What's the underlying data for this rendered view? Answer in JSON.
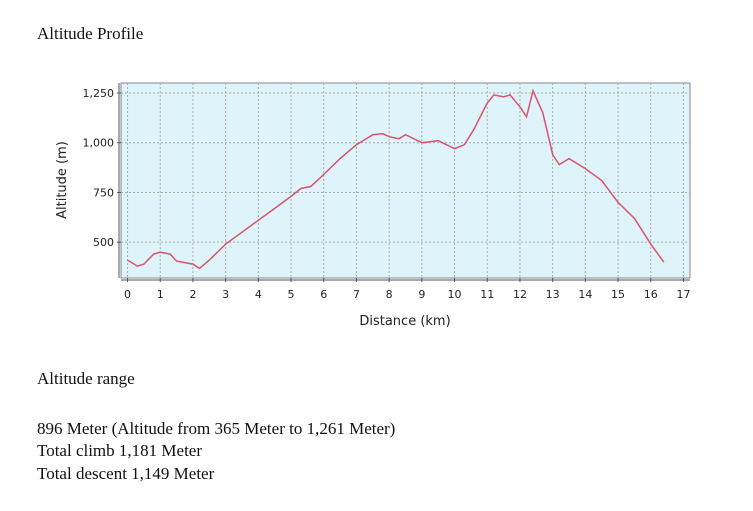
{
  "title": "Altitude Profile",
  "chart_data": {
    "type": "line",
    "xlabel": "Distance (km)",
    "ylabel": "Altitude (m)",
    "x": [
      0,
      0.3,
      0.5,
      0.8,
      1.0,
      1.3,
      1.5,
      2.0,
      2.2,
      2.5,
      3,
      3.5,
      4,
      4.5,
      5,
      5.3,
      5.6,
      6,
      6.5,
      7,
      7.5,
      7.8,
      8,
      8.3,
      8.5,
      9,
      9.5,
      10,
      10.3,
      10.6,
      11,
      11.2,
      11.5,
      11.7,
      12,
      12.2,
      12.4,
      12.7,
      13,
      13.2,
      13.5,
      14,
      14.5,
      15,
      15.5,
      16,
      16.4
    ],
    "series": [
      {
        "color": "#d9546a",
        "values": [
          410,
          380,
          390,
          440,
          450,
          440,
          405,
          390,
          368,
          410,
          490,
          550,
          610,
          670,
          730,
          770,
          780,
          840,
          920,
          990,
          1040,
          1045,
          1030,
          1020,
          1040,
          1000,
          1010,
          970,
          990,
          1070,
          1200,
          1240,
          1230,
          1240,
          1180,
          1130,
          1261,
          1150,
          940,
          890,
          920,
          870,
          810,
          700,
          620,
          490,
          400
        ]
      }
    ],
    "xlim": [
      -0.2,
      17.2
    ],
    "ylim": [
      320,
      1300
    ],
    "xticks": [
      0,
      1,
      2,
      3,
      4,
      5,
      6,
      7,
      8,
      9,
      10,
      11,
      12,
      13,
      14,
      15,
      16,
      17
    ],
    "yticks": [
      500,
      750,
      {
        "value": 1000,
        "label": "1,000"
      },
      {
        "value": 1250,
        "label": "1,250"
      }
    ],
    "grid": true,
    "background": "#dff3fb"
  },
  "summary": {
    "heading": "Altitude range",
    "lines": [
      "896 Meter (Altitude from 365 Meter to 1,261 Meter)",
      "Total climb 1,181 Meter",
      "Total descent 1,149 Meter"
    ]
  }
}
